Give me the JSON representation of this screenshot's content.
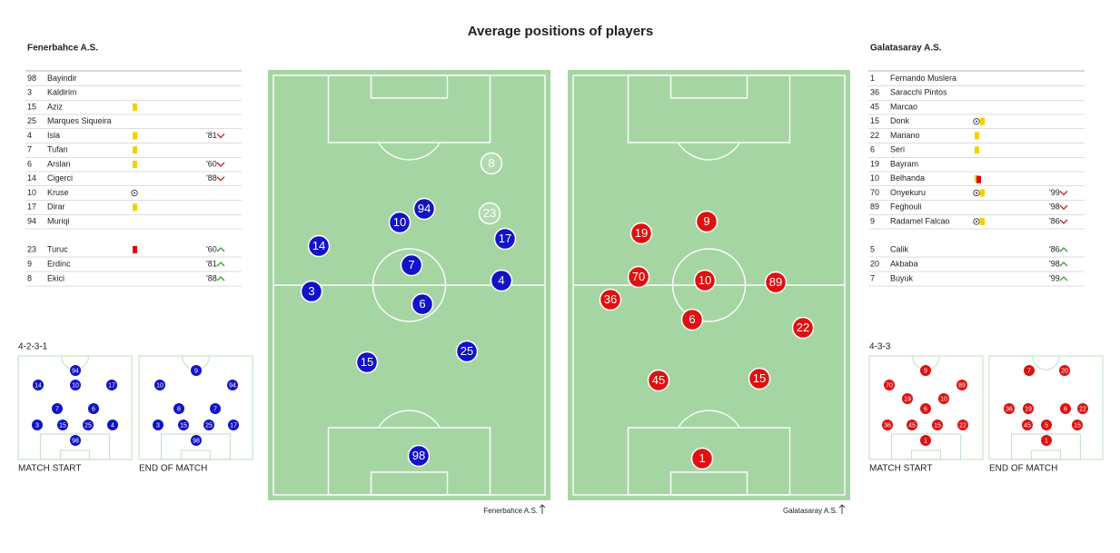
{
  "title": "Average positions of players",
  "teams": [
    {
      "name": "Fenerbahce A.S.",
      "color": "#1212c8",
      "lineup": [
        {
          "number": 98,
          "name": "Bayindir"
        },
        {
          "number": 3,
          "name": "Kaldirim"
        },
        {
          "number": 15,
          "name": "Aziz",
          "card": [
            "#f5d000"
          ]
        },
        {
          "number": 25,
          "name": "Marques Siqueira"
        },
        {
          "number": 4,
          "name": "Isla",
          "card": [
            "#f5d000"
          ],
          "sub": "'81"
        },
        {
          "number": 7,
          "name": "Tufan",
          "card": [
            "#f5d000"
          ]
        },
        {
          "number": 6,
          "name": "Arslan",
          "card": [
            "#f5d000"
          ],
          "sub": "'60"
        },
        {
          "number": 14,
          "name": "Cigerci",
          "sub": "'88"
        },
        {
          "number": 10,
          "name": "Kruse",
          "goal": true
        },
        {
          "number": 17,
          "name": "Dirar",
          "card": [
            "#f5d000"
          ]
        },
        {
          "number": 94,
          "name": "Muriqi"
        }
      ],
      "subs": [
        {
          "number": 23,
          "name": "Turuc",
          "card": [
            "#e00000"
          ],
          "sub": "'60"
        },
        {
          "number": 9,
          "name": "Erdinc",
          "sub": "'81"
        },
        {
          "number": 8,
          "name": "Ekici",
          "sub": "'88"
        }
      ],
      "formation": "4-2-3-1",
      "start_label": "MATCH START",
      "end_label": "END OF MATCH",
      "start_positions": [
        94,
        14,
        10,
        17,
        7,
        6,
        3,
        15,
        25,
        4,
        98
      ],
      "end_positions": [
        9,
        10,
        94,
        8,
        7,
        3,
        15,
        25,
        17,
        98
      ],
      "pitch_players": [
        {
          "number": 8,
          "color": "#ffffff"
        },
        {
          "number": 23,
          "color": "#ffffff"
        },
        {
          "number": 94,
          "color": "#1212c8"
        },
        {
          "number": 10,
          "color": "#1212c8"
        },
        {
          "number": 17,
          "color": "#1212c8"
        },
        {
          "number": 14,
          "color": "#1212c8"
        },
        {
          "number": 7,
          "color": "#1212c8"
        },
        {
          "number": 3,
          "color": "#1212c8"
        },
        {
          "number": 4,
          "color": "#1212c8"
        },
        {
          "number": 6,
          "color": "#1212c8"
        },
        {
          "number": 25,
          "color": "#1212c8"
        },
        {
          "number": 15,
          "color": "#1212c8"
        },
        {
          "number": 98,
          "color": "#1212c8"
        }
      ]
    },
    {
      "name": "Galatasaray A.S.",
      "color": "#e01010",
      "lineup": [
        {
          "number": 1,
          "name": "Fernando Muslera"
        },
        {
          "number": 36,
          "name": "Saracchi Pintos"
        },
        {
          "number": 45,
          "name": "Marcao"
        },
        {
          "number": 15,
          "name": "Donk",
          "goal": true,
          "card": [
            "#f5d000"
          ]
        },
        {
          "number": 22,
          "name": "Mariano",
          "card": [
            "#f5d000"
          ]
        },
        {
          "number": 6,
          "name": "Seri",
          "card": [
            "#f5d000"
          ]
        },
        {
          "number": 19,
          "name": "Bayram"
        },
        {
          "number": 10,
          "name": "Belhanda",
          "card": [
            "#f5d000",
            "#e00000"
          ]
        },
        {
          "number": 70,
          "name": "Onyekuru",
          "goal": true,
          "card": [
            "#f5d000"
          ],
          "sub": "'99"
        },
        {
          "number": 89,
          "name": "Feghouli",
          "sub": "'98"
        },
        {
          "number": 9,
          "name": "Radamel Falcao",
          "goal": true,
          "card": [
            "#f5d000"
          ],
          "sub": "'86"
        }
      ],
      "subs": [
        {
          "number": 5,
          "name": "Calik",
          "sub": "'86"
        },
        {
          "number": 20,
          "name": "Akbaba",
          "sub": "'98"
        },
        {
          "number": 7,
          "name": "Buyuk",
          "sub": "'99"
        }
      ],
      "formation": "4-3-3",
      "start_label": "MATCH START",
      "end_label": "END OF MATCH",
      "start_positions": [
        9,
        70,
        89,
        19,
        10,
        6,
        36,
        45,
        15,
        22,
        1
      ],
      "end_positions": [
        7,
        20,
        36,
        19,
        6,
        22,
        45,
        5,
        15,
        1
      ],
      "pitch_players": [
        {
          "number": 9,
          "color": "#e01010"
        },
        {
          "number": 19,
          "color": "#e01010"
        },
        {
          "number": 70,
          "color": "#e01010"
        },
        {
          "number": 10,
          "color": "#e01010"
        },
        {
          "number": 89,
          "color": "#e01010"
        },
        {
          "number": 36,
          "color": "#e01010"
        },
        {
          "number": 6,
          "color": "#e01010"
        },
        {
          "number": 22,
          "color": "#e01010"
        },
        {
          "number": 45,
          "color": "#e01010"
        },
        {
          "number": 15,
          "color": "#e01010"
        },
        {
          "number": 1,
          "color": "#e01010"
        }
      ]
    }
  ]
}
